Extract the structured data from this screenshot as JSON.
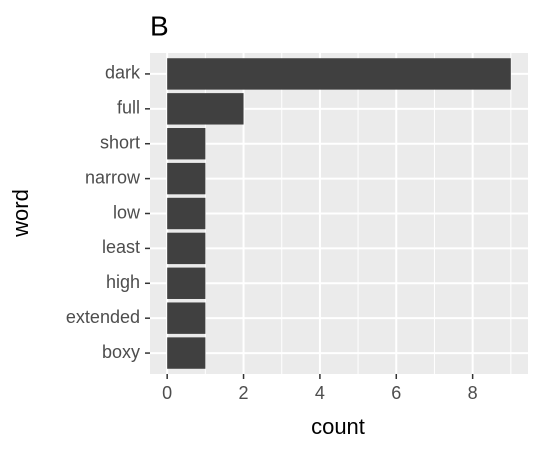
{
  "chart_data": {
    "type": "bar",
    "orientation": "horizontal",
    "title": "B",
    "x_label": "count",
    "y_label": "word",
    "categories": [
      "dark",
      "full",
      "short",
      "narrow",
      "low",
      "least",
      "high",
      "extended",
      "boxy"
    ],
    "values": [
      9,
      2,
      1,
      1,
      1,
      1,
      1,
      1,
      1
    ],
    "color": "#404040",
    "xlim": [
      -0.45,
      9.45
    ],
    "xticks": [
      0,
      2,
      4,
      6,
      8
    ],
    "minor_xticks": [
      1,
      3,
      5,
      7,
      9
    ],
    "grid": true
  }
}
